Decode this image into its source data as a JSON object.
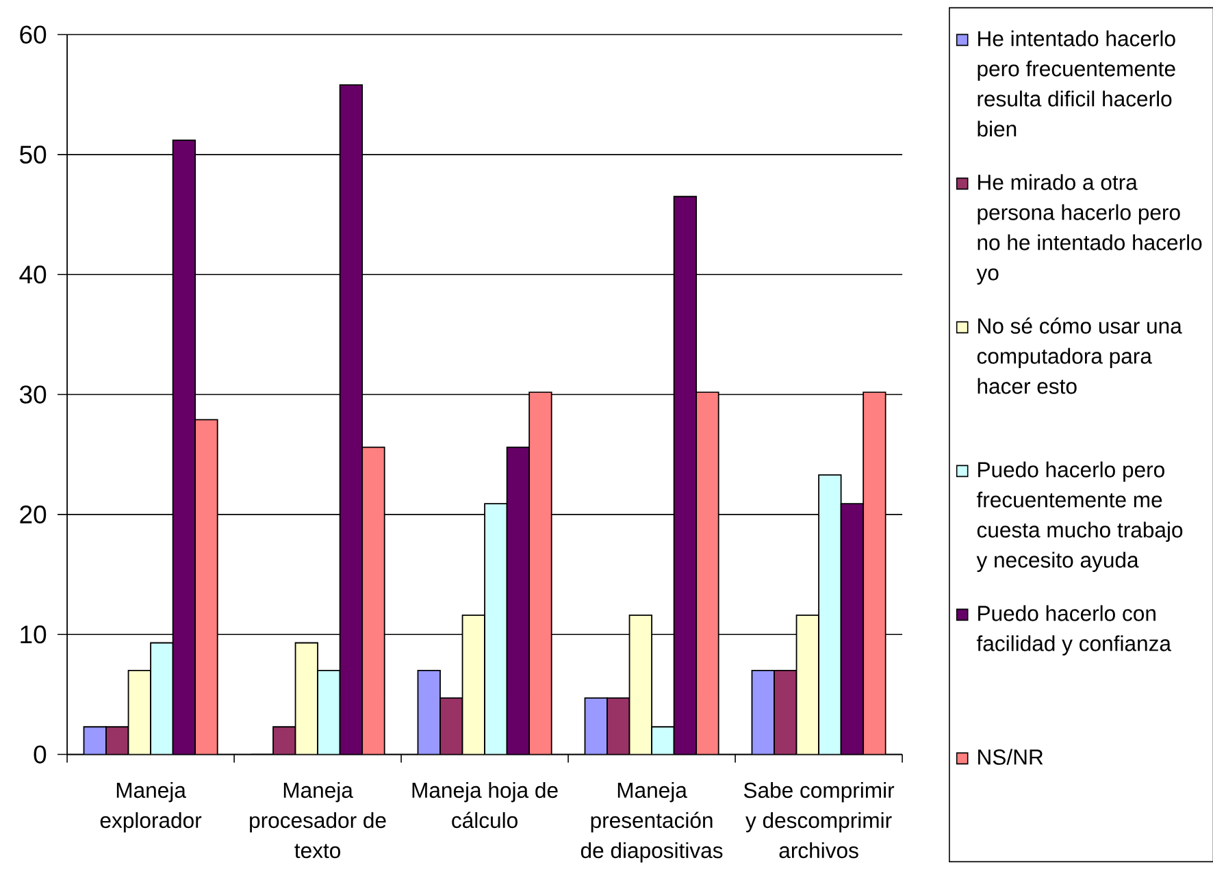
{
  "chart_data": {
    "type": "bar",
    "categories": [
      "Maneja explorador",
      "Maneja procesador de texto",
      "Maneja hoja de cálculo",
      "Maneja presentación de diapositivas",
      "Sabe comprimir y descomprimir archivos"
    ],
    "series": [
      {
        "name": "He intentado hacerlo pero frecuentemente resulta dificil hacerlo bien",
        "color": "#9999ff",
        "values": [
          2.3,
          0,
          7.0,
          4.7,
          7.0
        ]
      },
      {
        "name": "He mirado a otra persona hacerlo pero no he intentado hacerlo yo",
        "color": "#993366",
        "values": [
          2.3,
          2.3,
          4.7,
          4.7,
          7.0
        ]
      },
      {
        "name": "No sé cómo usar una computadora para hacer esto",
        "color": "#ffffcc",
        "values": [
          7.0,
          9.3,
          11.6,
          11.6,
          11.6
        ]
      },
      {
        "name": "Puedo hacerlo pero frecuentemente me cuesta mucho trabajo y necesito ayuda",
        "color": "#ccffff",
        "values": [
          9.3,
          7.0,
          20.9,
          2.3,
          23.3
        ]
      },
      {
        "name": "Puedo hacerlo con facilidad y confianza",
        "color": "#660066",
        "values": [
          51.2,
          55.8,
          25.6,
          46.5,
          20.9
        ]
      },
      {
        "name": "NS/NR",
        "color": "#ff8080",
        "values": [
          27.9,
          25.6,
          30.2,
          30.2,
          30.2
        ]
      }
    ],
    "ylim": [
      0,
      60
    ],
    "yticks": [
      0,
      10,
      20,
      30,
      40,
      50,
      60
    ],
    "grid": "y",
    "legend": "right"
  }
}
